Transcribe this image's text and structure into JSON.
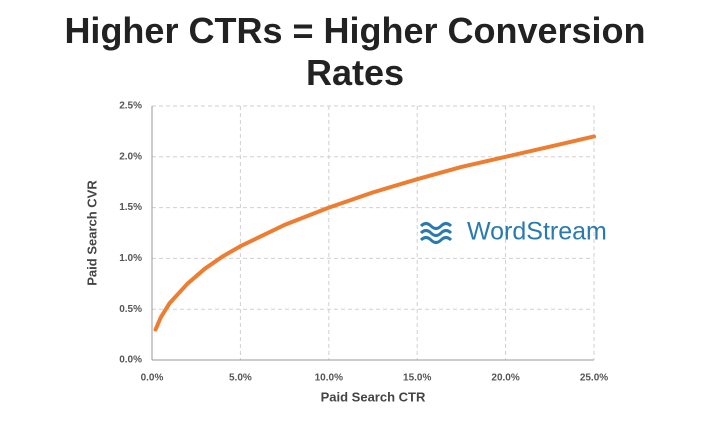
{
  "chart_data": {
    "type": "line",
    "title": "Higher CTRs = Higher Conversion Rates",
    "x_label": "Paid Search CTR",
    "y_label": "Paid Search CVR",
    "watermark": "WordStream",
    "x": [
      0.2,
      0.5,
      1,
      2,
      3,
      4,
      5,
      7.5,
      10,
      12.5,
      15,
      17.5,
      20,
      22.5,
      25
    ],
    "series": [
      {
        "name": "CVR",
        "color": "#ed7d31",
        "values": [
          0.3,
          0.42,
          0.56,
          0.75,
          0.9,
          1.02,
          1.12,
          1.33,
          1.5,
          1.65,
          1.78,
          1.9,
          2.0,
          2.1,
          2.2
        ]
      }
    ],
    "xlim": [
      0,
      25
    ],
    "xticks": [
      {
        "value": 0,
        "label": "0.0%"
      },
      {
        "value": 5,
        "label": "5.0%"
      },
      {
        "value": 10,
        "label": "10.0%"
      },
      {
        "value": 15,
        "label": "15.0%"
      },
      {
        "value": 20,
        "label": "20.0%"
      },
      {
        "value": 25,
        "label": "25.0%"
      }
    ],
    "ylim": [
      0,
      2.5
    ],
    "yticks": [
      {
        "value": 0,
        "label": "0.0%"
      },
      {
        "value": 0.5,
        "label": "0.5%"
      },
      {
        "value": 1,
        "label": "1.0%"
      },
      {
        "value": 1.5,
        "label": "1.5%"
      },
      {
        "value": 2,
        "label": "2.0%"
      },
      {
        "value": 2.5,
        "label": "2.5%"
      }
    ],
    "grid": true
  }
}
